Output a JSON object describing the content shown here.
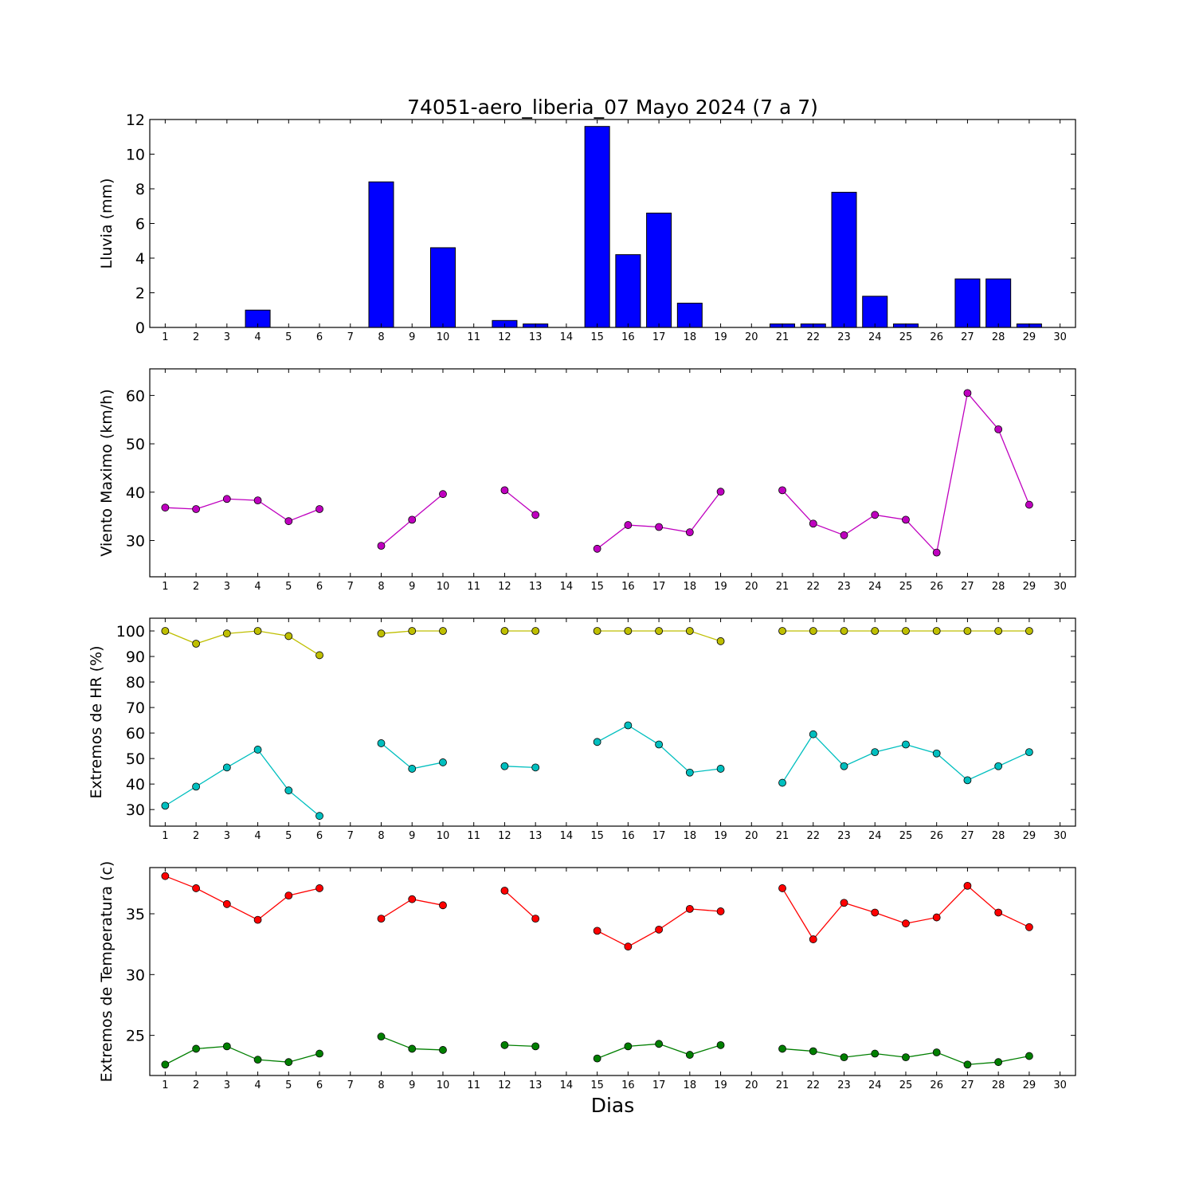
{
  "chart_data": [
    {
      "type": "bar",
      "title": "74051-aero_liberia_07 Mayo 2024  (7 a 7)",
      "ylabel": "Lluvia (mm)",
      "xlabel": "",
      "categories": [
        "1",
        "2",
        "3",
        "4",
        "5",
        "6",
        "7",
        "8",
        "9",
        "10",
        "11",
        "12",
        "13",
        "14",
        "15",
        "16",
        "17",
        "18",
        "19",
        "20",
        "21",
        "22",
        "23",
        "24",
        "25",
        "26",
        "27",
        "28",
        "29",
        "30"
      ],
      "values": [
        0,
        0,
        0,
        1.0,
        0,
        0,
        null,
        8.4,
        null,
        4.6,
        null,
        0.4,
        0.2,
        null,
        11.6,
        4.2,
        6.6,
        1.4,
        0,
        null,
        0.2,
        0.2,
        7.8,
        1.8,
        0.2,
        0,
        2.8,
        2.8,
        0.2,
        null
      ],
      "ylim": [
        0,
        12
      ],
      "yticks": [
        0,
        2,
        4,
        6,
        8,
        10,
        12
      ],
      "color": "#0000ff",
      "grid": false
    },
    {
      "type": "line",
      "ylabel": "Viento Maximo (km/h)",
      "xlabel": "",
      "categories": [
        "1",
        "2",
        "3",
        "4",
        "5",
        "6",
        "7",
        "8",
        "9",
        "10",
        "11",
        "12",
        "13",
        "14",
        "15",
        "16",
        "17",
        "18",
        "19",
        "20",
        "21",
        "22",
        "23",
        "24",
        "25",
        "26",
        "27",
        "28",
        "29",
        "30"
      ],
      "series": [
        {
          "color": "#bf00bf",
          "values": [
            36.8,
            36.5,
            38.6,
            38.3,
            34.0,
            36.5,
            null,
            28.9,
            34.3,
            39.6,
            null,
            40.4,
            35.3,
            null,
            28.3,
            33.2,
            32.8,
            31.7,
            40.1,
            null,
            40.4,
            33.5,
            31.1,
            35.3,
            34.3,
            27.5,
            60.5,
            53.0,
            37.4,
            null
          ]
        }
      ],
      "ylim": [
        22.5,
        65.5
      ],
      "yticks": [
        30,
        40,
        50,
        60
      ],
      "grid": false
    },
    {
      "type": "line",
      "ylabel": "Extremos de HR (%)",
      "xlabel": "",
      "categories": [
        "1",
        "2",
        "3",
        "4",
        "5",
        "6",
        "7",
        "8",
        "9",
        "10",
        "11",
        "12",
        "13",
        "14",
        "15",
        "16",
        "17",
        "18",
        "19",
        "20",
        "21",
        "22",
        "23",
        "24",
        "25",
        "26",
        "27",
        "28",
        "29",
        "30"
      ],
      "series": [
        {
          "color": "#bfbf00",
          "values": [
            100,
            95,
            99,
            100,
            98,
            90.5,
            null,
            99,
            100,
            100,
            null,
            100,
            100,
            null,
            100,
            100,
            100,
            100,
            96,
            null,
            100,
            100,
            100,
            100,
            100,
            100,
            100,
            100,
            100,
            null
          ]
        },
        {
          "color": "#00bfbf",
          "values": [
            31.5,
            39,
            46.5,
            53.5,
            37.5,
            27.5,
            null,
            56,
            46,
            48.5,
            null,
            47,
            46.5,
            null,
            56.5,
            63,
            55.5,
            44.5,
            46,
            null,
            40.5,
            59.5,
            47,
            52.5,
            55.5,
            52,
            41.5,
            47,
            52.5,
            null
          ]
        }
      ],
      "ylim": [
        23.5,
        105
      ],
      "yticks": [
        30,
        40,
        50,
        60,
        70,
        80,
        90,
        100
      ],
      "grid": false
    },
    {
      "type": "line",
      "ylabel": "Extremos de Temperatura (c)",
      "xlabel": "Dias",
      "categories": [
        "1",
        "2",
        "3",
        "4",
        "5",
        "6",
        "7",
        "8",
        "9",
        "10",
        "11",
        "12",
        "13",
        "14",
        "15",
        "16",
        "17",
        "18",
        "19",
        "20",
        "21",
        "22",
        "23",
        "24",
        "25",
        "26",
        "27",
        "28",
        "29",
        "30"
      ],
      "series": [
        {
          "color": "#ff0000",
          "values": [
            38.1,
            37.1,
            35.8,
            34.5,
            36.5,
            37.1,
            null,
            34.6,
            36.2,
            35.7,
            null,
            36.9,
            34.6,
            null,
            33.6,
            32.3,
            33.7,
            35.4,
            35.2,
            null,
            37.1,
            32.9,
            35.9,
            35.1,
            34.2,
            34.7,
            37.3,
            35.1,
            33.9,
            null
          ]
        },
        {
          "color": "#007f00",
          "values": [
            22.6,
            23.9,
            24.1,
            23.0,
            22.8,
            23.5,
            null,
            24.9,
            23.9,
            23.8,
            null,
            24.2,
            24.1,
            null,
            23.1,
            24.1,
            24.3,
            23.4,
            24.2,
            null,
            23.9,
            23.7,
            23.2,
            23.5,
            23.2,
            23.6,
            22.6,
            22.8,
            23.3,
            null
          ]
        }
      ],
      "ylim": [
        21.7,
        38.8
      ],
      "yticks": [
        25,
        30,
        35
      ],
      "grid": false
    }
  ]
}
